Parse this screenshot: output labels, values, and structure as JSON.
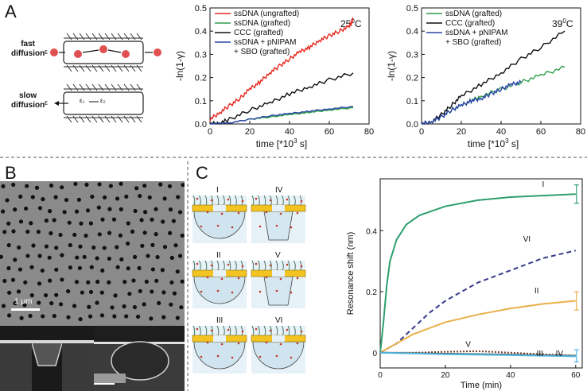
{
  "figure": {
    "panel_a": "A",
    "panel_b": "B",
    "panel_c": "C",
    "schematic": {
      "fast": "fast",
      "fast_line2": "diffusion",
      "slow": "slow",
      "slow_line2": "diffusion",
      "symbol_eps": "ε",
      "symbol_e1": "ε₁",
      "symbol_e2": "ε₂"
    },
    "sem": {
      "scale_text": "1 μm"
    },
    "states": [
      "I",
      "II",
      "III",
      "IV",
      "V",
      "VI"
    ]
  },
  "chart_data": [
    {
      "type": "line",
      "title": "25°C",
      "temp_main": "25",
      "temp_sup": "0",
      "temp_unit": "C",
      "xlabel": "time [*10",
      "xlabel_sup": "3",
      "xlabel_tail": " s]",
      "ylabel": "-ln(1-γ)",
      "xlim": [
        0,
        80
      ],
      "ylim": [
        0,
        0.5
      ],
      "xticks": [
        "0",
        "20",
        "40",
        "60",
        "80"
      ],
      "yticks": [
        "0.0",
        "0.1",
        "0.2",
        "0.3",
        "0.4",
        "0.5"
      ],
      "series": [
        {
          "name": "ssDNA (ungrafted)",
          "color": "#e8261e",
          "x": [
            0,
            5,
            10,
            15,
            20,
            25,
            30,
            35,
            40,
            45,
            50,
            55,
            60,
            65,
            70,
            72
          ],
          "y": [
            0.02,
            0.05,
            0.08,
            0.11,
            0.15,
            0.18,
            0.22,
            0.25,
            0.28,
            0.31,
            0.33,
            0.36,
            0.38,
            0.4,
            0.42,
            0.45
          ]
        },
        {
          "name": "ssDNA (grafted)",
          "color": "#2f9e4b",
          "x": [
            0,
            10,
            20,
            30,
            40,
            50,
            60,
            72
          ],
          "y": [
            0.0,
            0.005,
            0.02,
            0.03,
            0.04,
            0.05,
            0.06,
            0.07
          ]
        },
        {
          "name": "CCC (grafted)",
          "color": "#111111",
          "x": [
            0,
            5,
            10,
            20,
            30,
            40,
            50,
            60,
            72
          ],
          "y": [
            0.0,
            0.005,
            0.02,
            0.06,
            0.09,
            0.13,
            0.16,
            0.19,
            0.22
          ]
        },
        {
          "name": "ssDNA + pNIPAM + SBO (grafted)",
          "name_line1": "ssDNA + pNIPAM",
          "name_line2": "+ SBO (grafted)",
          "color": "#2b45a8",
          "x": [
            0,
            10,
            20,
            30,
            40,
            50,
            60,
            72
          ],
          "y": [
            0.0,
            0.005,
            0.02,
            0.035,
            0.045,
            0.055,
            0.065,
            0.075
          ]
        }
      ]
    },
    {
      "type": "line",
      "title": "39°C",
      "temp_main": "39",
      "temp_sup": "0",
      "temp_unit": "C",
      "xlabel": "time [*10",
      "xlabel_sup": "3",
      "xlabel_tail": " s]",
      "ylabel": "-ln(1-γ)",
      "xlim": [
        0,
        80
      ],
      "ylim": [
        0,
        0.5
      ],
      "xticks": [
        "0",
        "20",
        "40",
        "60",
        "80"
      ],
      "yticks": [
        "0.0",
        "0.1",
        "0.2",
        "0.3",
        "0.4",
        "0.5"
      ],
      "series": [
        {
          "name": "ssDNA (grafted)",
          "color": "#2f9e4b",
          "x": [
            0,
            5,
            10,
            15,
            20,
            25,
            30,
            40,
            50,
            60,
            72
          ],
          "y": [
            0.0,
            0.01,
            0.03,
            0.06,
            0.08,
            0.1,
            0.12,
            0.15,
            0.18,
            0.21,
            0.245
          ]
        },
        {
          "name": "CCC (grafted)",
          "color": "#111111",
          "x": [
            0,
            5,
            10,
            15,
            20,
            30,
            40,
            50,
            60,
            72
          ],
          "y": [
            0.0,
            0.01,
            0.04,
            0.08,
            0.12,
            0.17,
            0.22,
            0.28,
            0.33,
            0.4
          ]
        },
        {
          "name": "ssDNA + pNIPAM + SBO (grafted)",
          "name_line1": "ssDNA + pNIPAM",
          "name_line2": "+ SBO (grafted)",
          "color": "#2b45a8",
          "x": [
            0,
            5,
            10,
            15,
            20,
            25,
            30,
            35,
            40,
            45,
            50
          ],
          "y": [
            0.0,
            0.01,
            0.03,
            0.06,
            0.08,
            0.1,
            0.11,
            0.13,
            0.15,
            0.17,
            0.18
          ]
        }
      ]
    },
    {
      "type": "line",
      "title": "",
      "xlabel": "Time (min)",
      "ylabel": "Resonance shift (nm)",
      "xlim": [
        0,
        62
      ],
      "ylim": [
        -0.05,
        0.57
      ],
      "xticks": [
        "0",
        "20",
        "40",
        "60"
      ],
      "xtick_vals": [
        0,
        20,
        40,
        60
      ],
      "yticks": [
        "0",
        "0.2",
        "0.4"
      ],
      "ytick_vals": [
        0,
        0.2,
        0.4
      ],
      "series": [
        {
          "name": "I",
          "color": "#2e9e6f",
          "dash": "",
          "x": [
            0,
            1,
            2,
            3,
            5,
            8,
            12,
            20,
            30,
            40,
            50,
            60
          ],
          "y": [
            0,
            0.1,
            0.22,
            0.3,
            0.37,
            0.42,
            0.45,
            0.48,
            0.5,
            0.51,
            0.515,
            0.52
          ]
        },
        {
          "name": "VI",
          "color": "#3a3c8c",
          "dash": "6,4",
          "x": [
            0,
            5,
            10,
            15,
            20,
            25,
            30,
            40,
            50,
            60
          ],
          "y": [
            0,
            0.03,
            0.08,
            0.13,
            0.17,
            0.2,
            0.23,
            0.27,
            0.31,
            0.335
          ]
        },
        {
          "name": "II",
          "color": "#e8b04a",
          "dash": "",
          "x": [
            0,
            5,
            10,
            15,
            20,
            30,
            40,
            50,
            60
          ],
          "y": [
            0,
            0.03,
            0.06,
            0.08,
            0.1,
            0.125,
            0.145,
            0.16,
            0.17
          ]
        },
        {
          "name": "V",
          "color": "#7a3b2a",
          "dash": "2,2",
          "x": [
            0,
            10,
            20,
            30,
            40,
            50,
            60
          ],
          "y": [
            0,
            0.0,
            0.003,
            0.005,
            0.0,
            -0.005,
            -0.01
          ]
        },
        {
          "name": "III",
          "color": "#555555",
          "dash": "",
          "x": [
            0,
            20,
            40,
            60
          ],
          "y": [
            0,
            -0.003,
            -0.006,
            -0.01
          ]
        },
        {
          "name": "IV",
          "color": "#4fb6e0",
          "dash": "",
          "x": [
            0,
            20,
            40,
            60
          ],
          "y": [
            0,
            -0.005,
            -0.008,
            -0.012
          ]
        }
      ]
    }
  ]
}
